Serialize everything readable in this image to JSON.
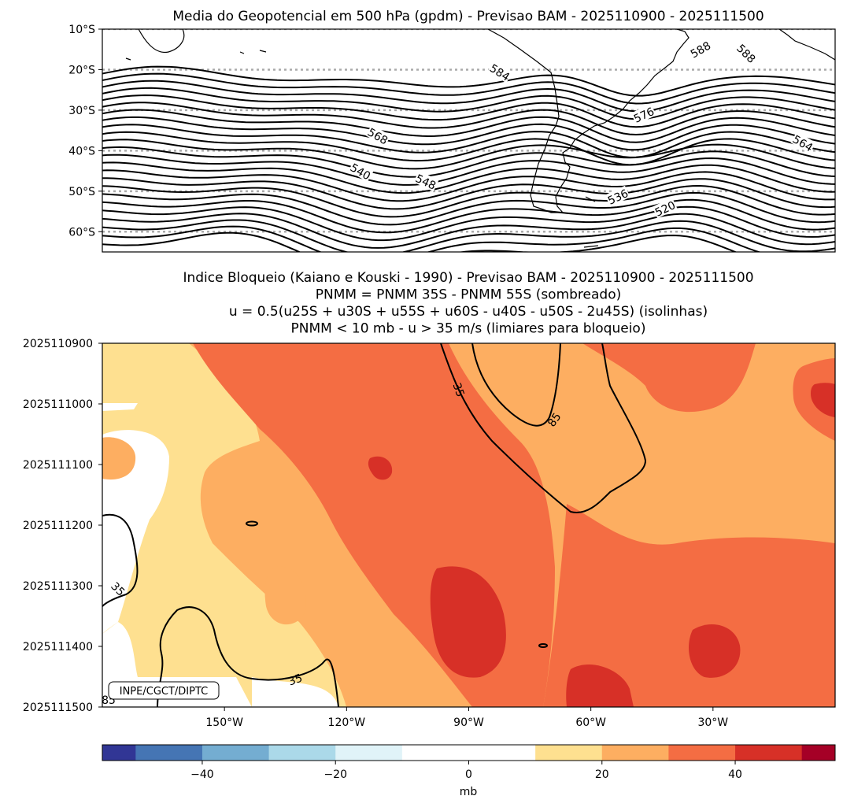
{
  "top_panel": {
    "title": "Media do Geopotencial em 500 hPa (gpdm) - Previsao BAM - 2025110900 - 2025111500",
    "lat_ticks": [
      "10°S",
      "20°S",
      "30°S",
      "40°S",
      "50°S",
      "60°S"
    ],
    "contour_labels": [
      "584",
      "588",
      "588",
      "576",
      "568",
      "564",
      "540",
      "548",
      "536",
      "520"
    ]
  },
  "bottom_panel": {
    "title_lines": [
      "Indice Bloqueio (Kaiano e Kouski - 1990) - Previsao BAM - 2025110900 - 2025111500",
      "PNMM = PNMM 35S - PNMM 55S (sombreado)",
      "u = 0.5(u25S + u30S + u55S + u60S - u40S - u50S - 2u45S) (isolinhas)",
      "PNMM < 10 mb - u > 35 m/s (limiares para bloqueio)"
    ],
    "watermark": "INPE/CGCT/DIPTC",
    "contour_labels": [
      "35",
      "85",
      "35",
      "35",
      "85"
    ]
  },
  "colorbar": {
    "label": "mb",
    "colors": [
      "#313695",
      "#4575b4",
      "#74add1",
      "#abd9e9",
      "#e0f3f8",
      "#ffffff",
      "#ffffff",
      "#fee090",
      "#fdae61",
      "#f46d43",
      "#d73027",
      "#a50026"
    ]
  },
  "chart_data": [
    {
      "type": "contour",
      "title": "Media do Geopotencial em 500 hPa (gpdm) - Previsao BAM - 2025110900 - 2025111500",
      "xlabel": "",
      "ylabel": "",
      "y_ticks": [
        "10°S",
        "20°S",
        "30°S",
        "40°S",
        "50°S",
        "60°S"
      ],
      "ylim": [
        -65,
        -10
      ],
      "xlim": [
        -180,
        -0.5
      ],
      "grid": "dotted gray horizontal lines at latitude ticks",
      "contour_interval_gpdm": 4,
      "contour_labels": [
        584,
        588,
        588,
        576,
        568,
        564,
        540,
        548,
        536,
        520
      ]
    },
    {
      "type": "heatmap",
      "title": "Indice Bloqueio (Kaiano e Kouski - 1990) - Previsao BAM - 2025110900 - 2025111500",
      "x_ticks": [
        "150°W",
        "120°W",
        "90°W",
        "60°W",
        "30°W"
      ],
      "x_tick_values": [
        -150,
        -120,
        -90,
        -60,
        -30
      ],
      "xlim": [
        -180,
        0
      ],
      "y_ticks": [
        "2025110900",
        "2025111000",
        "2025111100",
        "2025111200",
        "2025111300",
        "2025111400",
        "2025111500"
      ],
      "shading": "PNMM difference (mb)",
      "isolines": "u index (m/s)",
      "isoline_labels": [
        35,
        85,
        35,
        35,
        85
      ]
    },
    {
      "type": "colorbar",
      "label": "mb",
      "ticks": [
        -40,
        -20,
        0,
        20,
        40
      ],
      "tick_labels": [
        "−40",
        "−20",
        "0",
        "20",
        "40"
      ],
      "boundaries": [
        -55,
        -50,
        -40,
        -30,
        -20,
        -10,
        0,
        10,
        20,
        30,
        40,
        50,
        55
      ]
    }
  ]
}
